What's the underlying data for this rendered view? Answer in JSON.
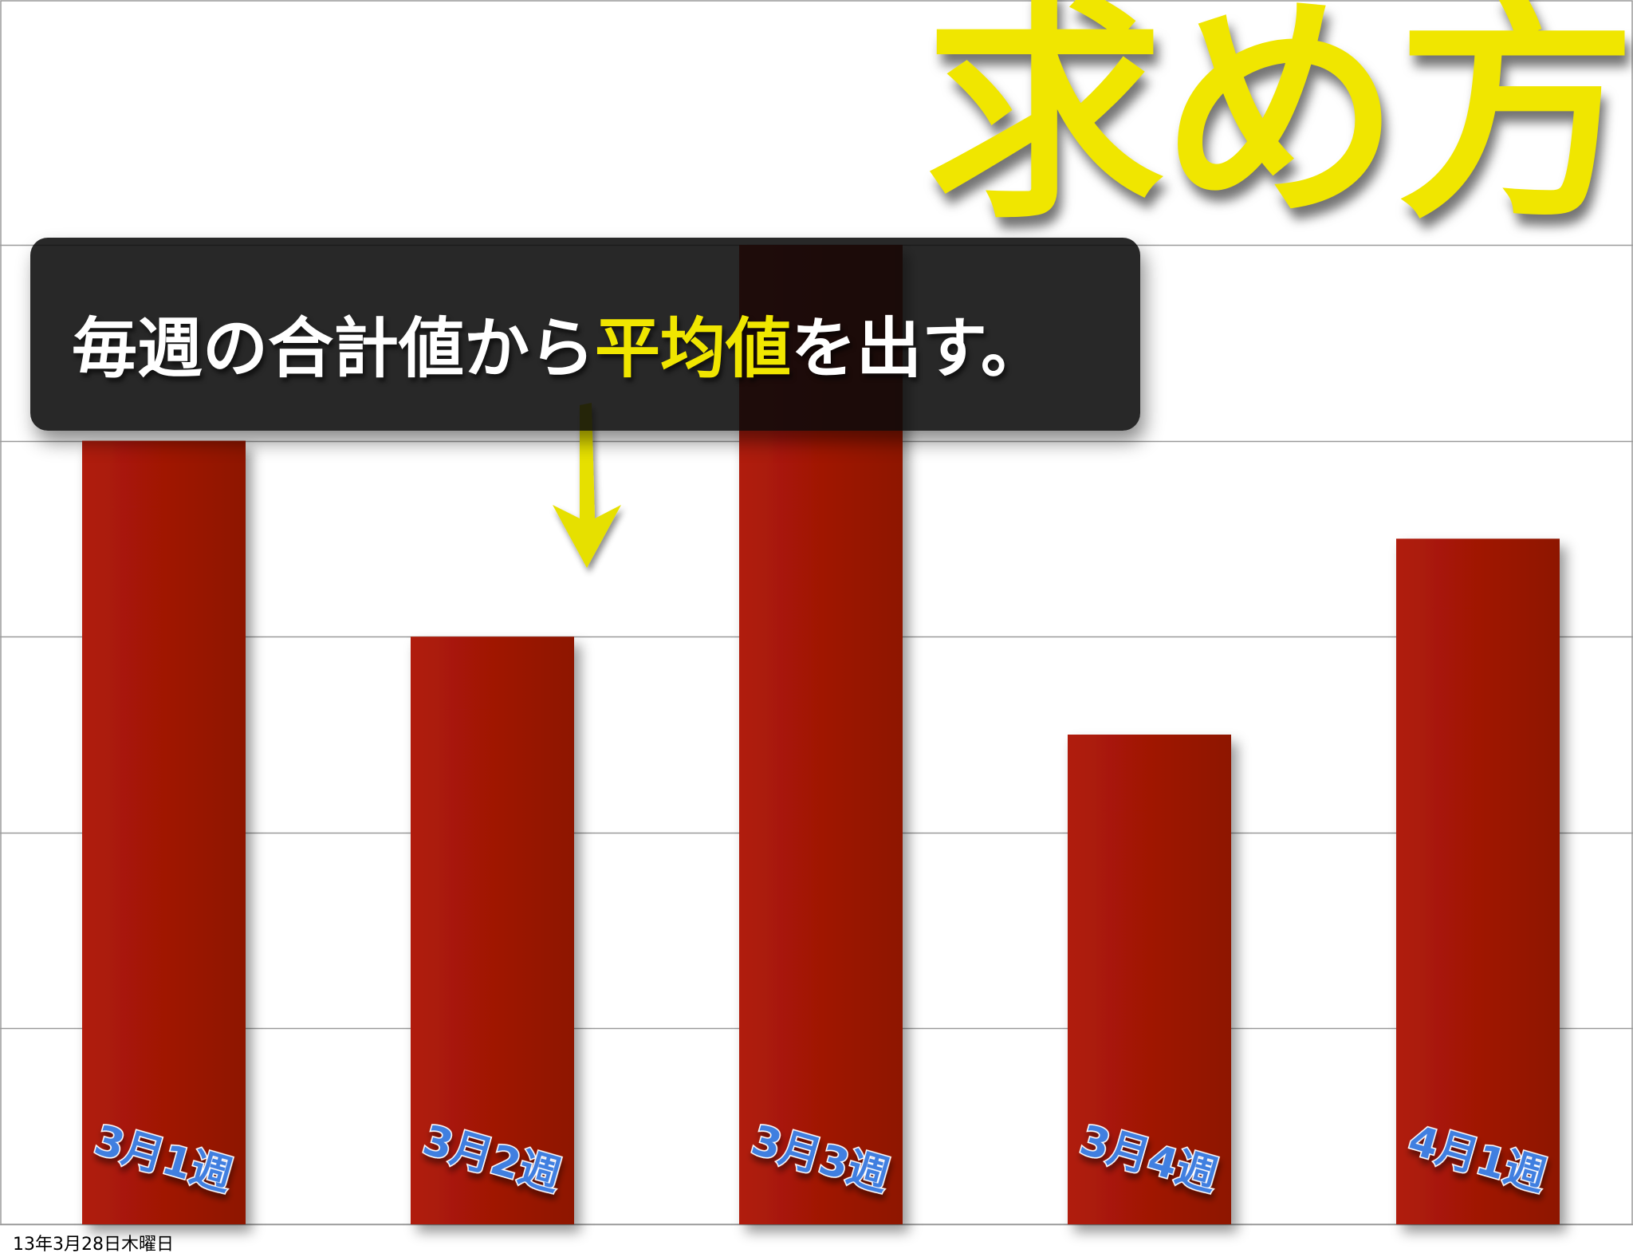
{
  "title": "求め方",
  "callout": {
    "prefix": "毎週の合計値から",
    "highlight": "平均値",
    "suffix": "を出す。"
  },
  "footer": "13年3月28日木曜日",
  "colors": {
    "bar": "#a31708",
    "title": "#f0e600",
    "average_line": "#4a78a8",
    "arrow": "#e6e000",
    "bar_label": "#3f7fe0"
  },
  "chart_data": {
    "type": "bar",
    "categories": [
      "3月1週",
      "3月2週",
      "3月3週",
      "3月4週",
      "4月1週"
    ],
    "values": [
      4.0,
      3.0,
      5.0,
      2.5,
      3.5
    ],
    "average": 3.6,
    "ylim": [
      0,
      5
    ],
    "grid": true,
    "title": "",
    "xlabel": "",
    "ylabel": ""
  }
}
